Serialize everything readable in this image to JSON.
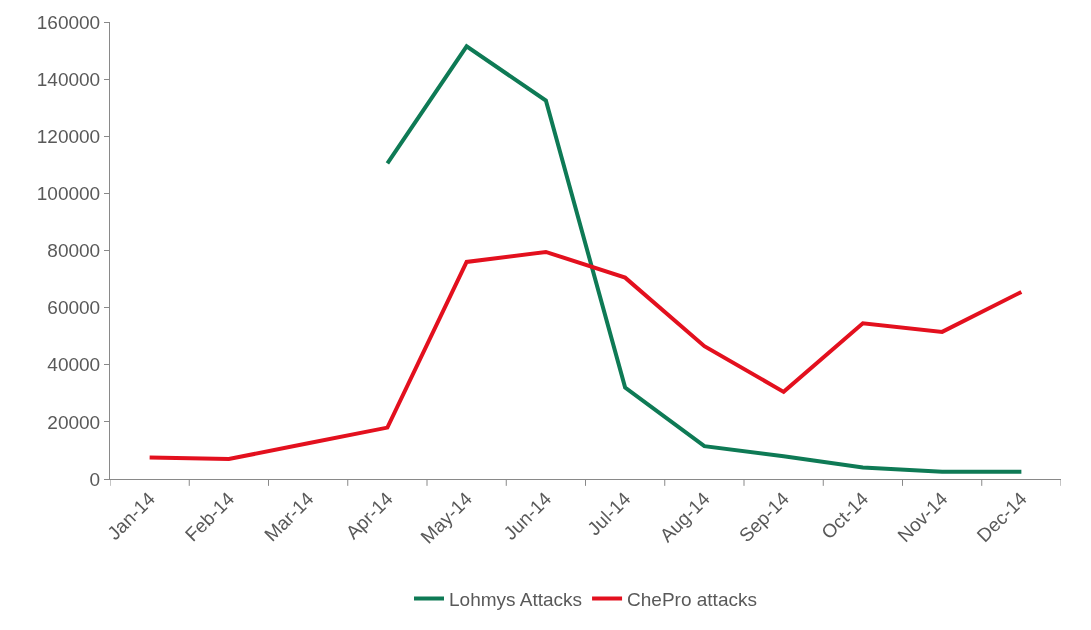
{
  "chart_data": {
    "type": "line",
    "categories": [
      "Jan-14",
      "Feb-14",
      "Mar-14",
      "Apr-14",
      "May-14",
      "Jun-14",
      "Jul-14",
      "Aug-14",
      "Sep-14",
      "Oct-14",
      "Nov-14",
      "Dec-14"
    ],
    "series": [
      {
        "name": "Lohmys Attacks",
        "color": "#0e7a55",
        "values": [
          null,
          null,
          null,
          110500,
          151500,
          132500,
          32000,
          11500,
          8000,
          4000,
          2500,
          2500
        ]
      },
      {
        "name": "ChePro attacks",
        "color": "#e3101e",
        "values": [
          7500,
          7000,
          12500,
          18000,
          76000,
          79500,
          70500,
          46500,
          30500,
          54500,
          51500,
          65500
        ]
      }
    ],
    "ylim": [
      0,
      160000
    ],
    "yticks": [
      0,
      20000,
      40000,
      60000,
      80000,
      100000,
      120000,
      140000,
      160000
    ],
    "legend": "bottom",
    "marker": "none",
    "line_style": "solid"
  }
}
